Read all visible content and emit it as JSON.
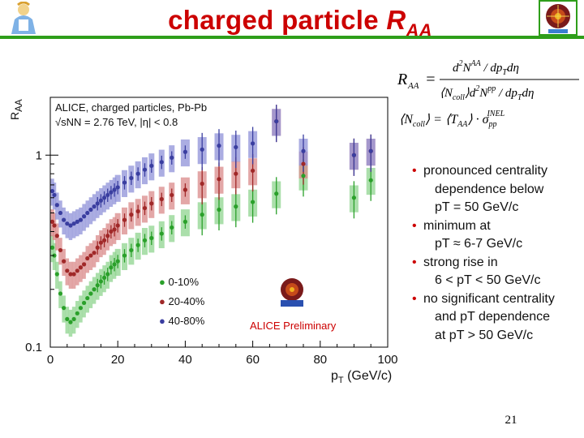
{
  "slide": {
    "title_main": "charged particle ",
    "title_var": "R",
    "title_sub": "AA",
    "page_number": "21"
  },
  "formula": {
    "line1_lhs": "R",
    "line1_lhs_sub": "AA",
    "line1_num": "d²N^AA / dp_T dη",
    "line1_den": "⟨N_coll⟩ d²N^pp / dp_T dη",
    "line2_lhs": "⟨N_coll⟩",
    "line2_rhs": "⟨T_AA⟩ · σ_pp^INEL"
  },
  "bullets": [
    {
      "text": "pronounced centrality",
      "cont": "dependence below",
      "cont2": "pT = 50 GeV/c"
    },
    {
      "text": "minimum at",
      "cont": "pT ≈ 6-7 GeV/c"
    },
    {
      "text": "strong rise in",
      "cont": "6 < pT < 50 GeV/c"
    },
    {
      "text": "no significant centrality",
      "cont": "and pT dependence",
      "cont2": "at pT > 50 GeV/c"
    }
  ],
  "chart_data": {
    "type": "scatter",
    "ylabel": "R_AA",
    "xlabel": "p_T (GeV/c)",
    "xlim": [
      0,
      100
    ],
    "ylim": [
      0.1,
      2
    ],
    "yscale": "log",
    "xticks": [
      "0",
      "20",
      "40",
      "60",
      "80",
      "100"
    ],
    "yticks": [
      "0.1",
      "1"
    ],
    "header_line1": "ALICE, charged particles, Pb-Pb",
    "header_line2": "√sNN = 2.76 TeV, |η| < 0.8",
    "watermark": "ALICE Preliminary",
    "legend_position": "bottom-left",
    "series": [
      {
        "name": "0-10%",
        "color": "#2aa02a",
        "band_color": "#8fd48f",
        "x": [
          0.6,
          1.2,
          2,
          3,
          4,
          5,
          6,
          7,
          8,
          9,
          10,
          11,
          12,
          13,
          14,
          15,
          16,
          17,
          18,
          19,
          20,
          22,
          24,
          26,
          28,
          30,
          33,
          36,
          40,
          45,
          50,
          55,
          60,
          67,
          75,
          90,
          95
        ],
        "y": [
          0.33,
          0.3,
          0.24,
          0.19,
          0.16,
          0.14,
          0.135,
          0.14,
          0.15,
          0.16,
          0.17,
          0.18,
          0.19,
          0.2,
          0.21,
          0.22,
          0.23,
          0.24,
          0.26,
          0.27,
          0.28,
          0.3,
          0.32,
          0.34,
          0.36,
          0.37,
          0.39,
          0.42,
          0.45,
          0.49,
          0.52,
          0.54,
          0.57,
          0.63,
          0.78,
          0.6,
          0.74
        ]
      },
      {
        "name": "20-40%",
        "color": "#a02828",
        "band_color": "#d98a8a",
        "x": [
          0.6,
          1.2,
          2,
          3,
          4,
          5,
          6,
          7,
          8,
          9,
          10,
          11,
          12,
          13,
          14,
          15,
          16,
          17,
          18,
          19,
          20,
          22,
          24,
          26,
          28,
          30,
          33,
          36,
          40,
          45,
          50,
          55,
          60,
          67,
          75,
          90,
          95
        ],
        "y": [
          0.45,
          0.43,
          0.38,
          0.32,
          0.28,
          0.25,
          0.24,
          0.24,
          0.25,
          0.26,
          0.27,
          0.29,
          0.3,
          0.31,
          0.33,
          0.35,
          0.36,
          0.38,
          0.4,
          0.41,
          0.43,
          0.46,
          0.49,
          0.51,
          0.53,
          0.56,
          0.59,
          0.62,
          0.66,
          0.71,
          0.75,
          0.8,
          0.83,
          1.5,
          0.9,
          1.0,
          1.05
        ]
      },
      {
        "name": "40-80%",
        "color": "#3a3ea0",
        "band_color": "#8f92d8",
        "x": [
          0.6,
          1.2,
          2,
          3,
          4,
          5,
          6,
          7,
          8,
          9,
          10,
          11,
          12,
          13,
          14,
          15,
          16,
          17,
          18,
          19,
          20,
          22,
          24,
          26,
          28,
          30,
          33,
          36,
          40,
          45,
          50,
          55,
          60,
          67,
          75,
          90,
          95
        ],
        "y": [
          0.65,
          0.62,
          0.55,
          0.5,
          0.46,
          0.44,
          0.43,
          0.44,
          0.45,
          0.46,
          0.48,
          0.5,
          0.52,
          0.54,
          0.56,
          0.58,
          0.6,
          0.62,
          0.64,
          0.66,
          0.68,
          0.72,
          0.76,
          0.8,
          0.84,
          0.88,
          0.92,
          0.97,
          1.04,
          1.07,
          1.12,
          1.1,
          1.15,
          1.5,
          1.05,
          1.0,
          1.05
        ]
      }
    ]
  }
}
